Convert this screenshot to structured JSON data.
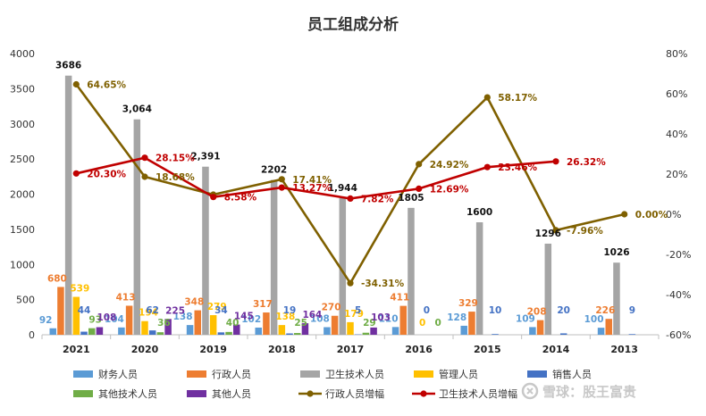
{
  "chart_data": {
    "type": "bar",
    "title": "员工组成分析",
    "categories": [
      "2021",
      "2020",
      "2019",
      "2018",
      "2017",
      "2016",
      "2015",
      "2014",
      "2013"
    ],
    "ylim": [
      0,
      4000
    ],
    "yticks": [
      "0",
      "500",
      "1000",
      "1500",
      "2000",
      "2500",
      "3000",
      "3500",
      "4000"
    ],
    "y2lim": [
      -60,
      80
    ],
    "y2ticks": [
      "-60%",
      "-40%",
      "-20%",
      "0%",
      "20%",
      "40%",
      "60%",
      "80%"
    ],
    "grid": false,
    "legend_position": "bottom",
    "bar_series": [
      {
        "name": "财务人员",
        "color": "#5b9bd5",
        "values": [
          92,
          104,
          138,
          102,
          108,
          110,
          128,
          109,
          100
        ],
        "labels": [
          "92",
          "104",
          "138",
          "102",
          "108",
          "110",
          "128",
          "109",
          "100"
        ]
      },
      {
        "name": "行政人员",
        "color": "#ed7d31",
        "values": [
          680,
          413,
          348,
          317,
          270,
          411,
          329,
          208,
          226
        ],
        "labels": [
          "680",
          "413",
          "348",
          "317",
          "270",
          "411",
          "329",
          "208",
          "226"
        ]
      },
      {
        "name": "卫生技术人员",
        "color": "#a5a5a5",
        "values": [
          3686,
          3064,
          2391,
          2202,
          1944,
          1805,
          1600,
          1296,
          1026
        ],
        "labels": [
          "3686",
          "3,064",
          "2,391",
          "2202",
          "1,944",
          "1805",
          "1600",
          "1296",
          "1026"
        ]
      },
      {
        "name": "管理人员",
        "color": "#ffc000",
        "values": [
          539,
          194,
          279,
          138,
          179,
          0,
          null,
          null,
          null
        ],
        "labels": [
          "539",
          "194",
          "279",
          "138",
          "179",
          "0",
          "",
          "",
          ""
        ]
      },
      {
        "name": "销售人员",
        "color": "#4472c4",
        "values": [
          44,
          62,
          34,
          19,
          5,
          0,
          10,
          20,
          9
        ],
        "labels": [
          "44",
          "62",
          "34",
          "19",
          "5",
          "0",
          "10",
          "20",
          "9"
        ]
      },
      {
        "name": "其他技术人员",
        "color": "#70ad47",
        "values": [
          93,
          36,
          40,
          25,
          29,
          0,
          null,
          null,
          null
        ],
        "labels": [
          "93",
          "36",
          "40",
          "25",
          "29",
          "0",
          "",
          "",
          ""
        ]
      },
      {
        "name": "其他人员",
        "color": "#7030a0",
        "values": [
          108,
          225,
          145,
          164,
          103,
          null,
          null,
          null,
          null
        ],
        "labels": [
          "108",
          "225",
          "145",
          "164",
          "103",
          "",
          "",
          "",
          ""
        ]
      }
    ],
    "line_series": [
      {
        "name": "行政人员增幅",
        "color": "#7f6000",
        "axis": "right",
        "values": [
          64.65,
          18.68,
          9.78,
          17.41,
          -34.31,
          24.92,
          58.17,
          -7.96,
          0.0
        ],
        "labels": [
          "64.65%",
          "18.68%",
          "",
          "17.41%",
          "-34.31%",
          "24.92%",
          "58.17%",
          "-7.96%",
          "0.00%"
        ]
      },
      {
        "name": "卫生技术人员增幅",
        "color": "#c00000",
        "axis": "right",
        "values": [
          20.3,
          28.15,
          8.58,
          13.27,
          7.82,
          12.69,
          23.46,
          26.32,
          null
        ],
        "labels": [
          "20.30%",
          "28.15%",
          "8.58%",
          "13.27%",
          "7.82%",
          "12.69%",
          "23.46%",
          "26.32%",
          ""
        ]
      }
    ]
  },
  "watermark": {
    "text": "雪球：股王富贵",
    "icon": "snowball-logo-icon"
  }
}
